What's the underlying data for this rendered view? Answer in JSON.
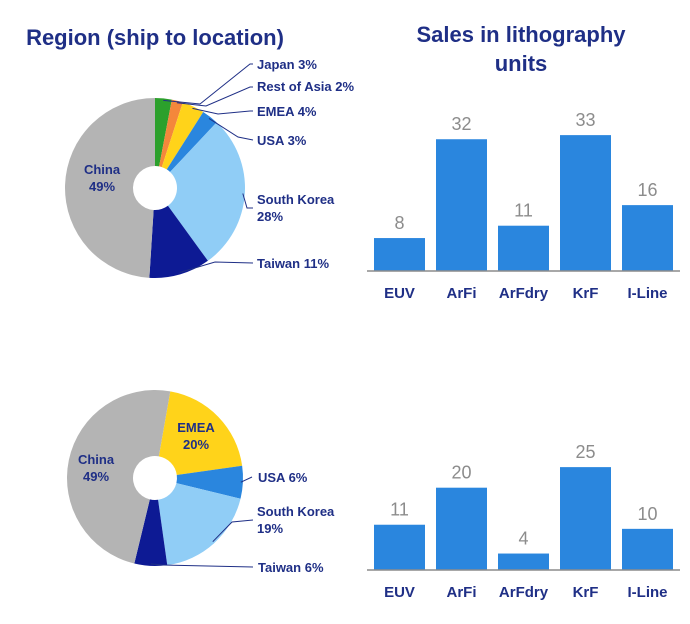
{
  "titles": {
    "region": "Region (ship to location)",
    "sales_line1": "Sales in lithography",
    "sales_line2": "units"
  },
  "chart_data": [
    {
      "type": "pie",
      "title": "Region (ship to location)",
      "slices": [
        {
          "label": "Japan",
          "value": 3,
          "display": "Japan 3%",
          "color": "#2ca02c"
        },
        {
          "label": "Rest of Asia",
          "value": 2,
          "display": "Rest of Asia 2%",
          "color": "#f4873b"
        },
        {
          "label": "EMEA",
          "value": 4,
          "display": "EMEA 4%",
          "color": "#ffd31a"
        },
        {
          "label": "USA",
          "value": 3,
          "display": "USA 3%",
          "color": "#2a86de"
        },
        {
          "label": "South Korea",
          "value": 28,
          "display": [
            "South Korea",
            "28%"
          ],
          "color": "#90cdf6"
        },
        {
          "label": "Taiwan",
          "value": 11,
          "display": "Taiwan 11%",
          "color": "#0d1a94"
        },
        {
          "label": "China",
          "value": 49,
          "display": [
            "China",
            "49%"
          ],
          "color": "#b4b4b4"
        }
      ]
    },
    {
      "type": "bar",
      "title": "Sales in lithography units",
      "categories": [
        "EUV",
        "ArFi",
        "ArFdry",
        "KrF",
        "I-Line"
      ],
      "values": [
        8,
        32,
        11,
        33,
        16
      ],
      "color": "#2a86de",
      "ylim": [
        0,
        34
      ]
    },
    {
      "type": "pie",
      "title": "",
      "slices": [
        {
          "label": "EMEA",
          "value": 20,
          "display": [
            "EMEA",
            "20%"
          ],
          "color": "#ffd31a"
        },
        {
          "label": "USA",
          "value": 6,
          "display": "USA 6%",
          "color": "#2a86de"
        },
        {
          "label": "South Korea",
          "value": 19,
          "display": [
            "South Korea",
            "19%"
          ],
          "color": "#90cdf6"
        },
        {
          "label": "Taiwan",
          "value": 6,
          "display": "Taiwan 6%",
          "color": "#0d1a94"
        },
        {
          "label": "China",
          "value": 49,
          "display": [
            "China",
            "49%"
          ],
          "color": "#b4b4b4"
        }
      ]
    },
    {
      "type": "bar",
      "title": "",
      "categories": [
        "EUV",
        "ArFi",
        "ArFdry",
        "KrF",
        "I-Line"
      ],
      "values": [
        11,
        20,
        4,
        25,
        10
      ],
      "color": "#2a86de",
      "ylim": [
        0,
        26
      ]
    }
  ]
}
